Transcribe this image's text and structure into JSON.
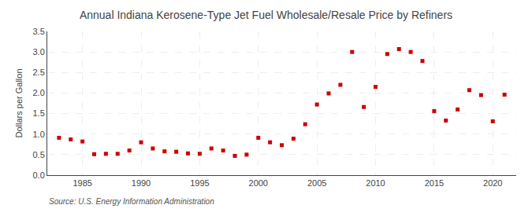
{
  "chart_data": {
    "type": "scatter",
    "title": "Annual Indiana Kerosene-Type Jet Fuel Wholesale/Resale Price by Refiners",
    "ylabel": "Dollars per Gallon",
    "annotations": [
      "Source: U.S. Energy Information Administration"
    ],
    "x": [
      1983,
      1984,
      1985,
      1986,
      1987,
      1988,
      1989,
      1990,
      1991,
      1992,
      1993,
      1994,
      1995,
      1996,
      1997,
      1998,
      1999,
      2000,
      2001,
      2002,
      2003,
      2004,
      2005,
      2006,
      2007,
      2008,
      2009,
      2010,
      2011,
      2012,
      2013,
      2014,
      2015,
      2016,
      2017,
      2018,
      2019,
      2020,
      2021
    ],
    "values": [
      0.91,
      0.87,
      0.82,
      0.51,
      0.52,
      0.52,
      0.6,
      0.8,
      0.65,
      0.58,
      0.57,
      0.53,
      0.52,
      0.65,
      0.6,
      0.47,
      0.5,
      0.91,
      0.8,
      0.73,
      0.89,
      1.24,
      1.72,
      1.99,
      2.2,
      3.0,
      1.66,
      2.15,
      2.95,
      3.07,
      3.0,
      2.78,
      1.56,
      1.33,
      1.6,
      2.07,
      1.95,
      1.31,
      1.96
    ],
    "color": "#cc0000",
    "marker": "square",
    "xlim": [
      1982,
      2022
    ],
    "xticks": [
      1985,
      1990,
      1995,
      2000,
      2005,
      2010,
      2015,
      2020
    ],
    "ylim": [
      0.0,
      3.5
    ],
    "yticks": [
      {
        "value": 0,
        "label": "0.0"
      },
      0.5,
      {
        "value": 1,
        "label": "1.0"
      },
      1.5,
      {
        "value": 2,
        "label": "2.0"
      },
      2.5,
      {
        "value": 3,
        "label": "3.0"
      },
      3.5
    ],
    "grid": true
  }
}
